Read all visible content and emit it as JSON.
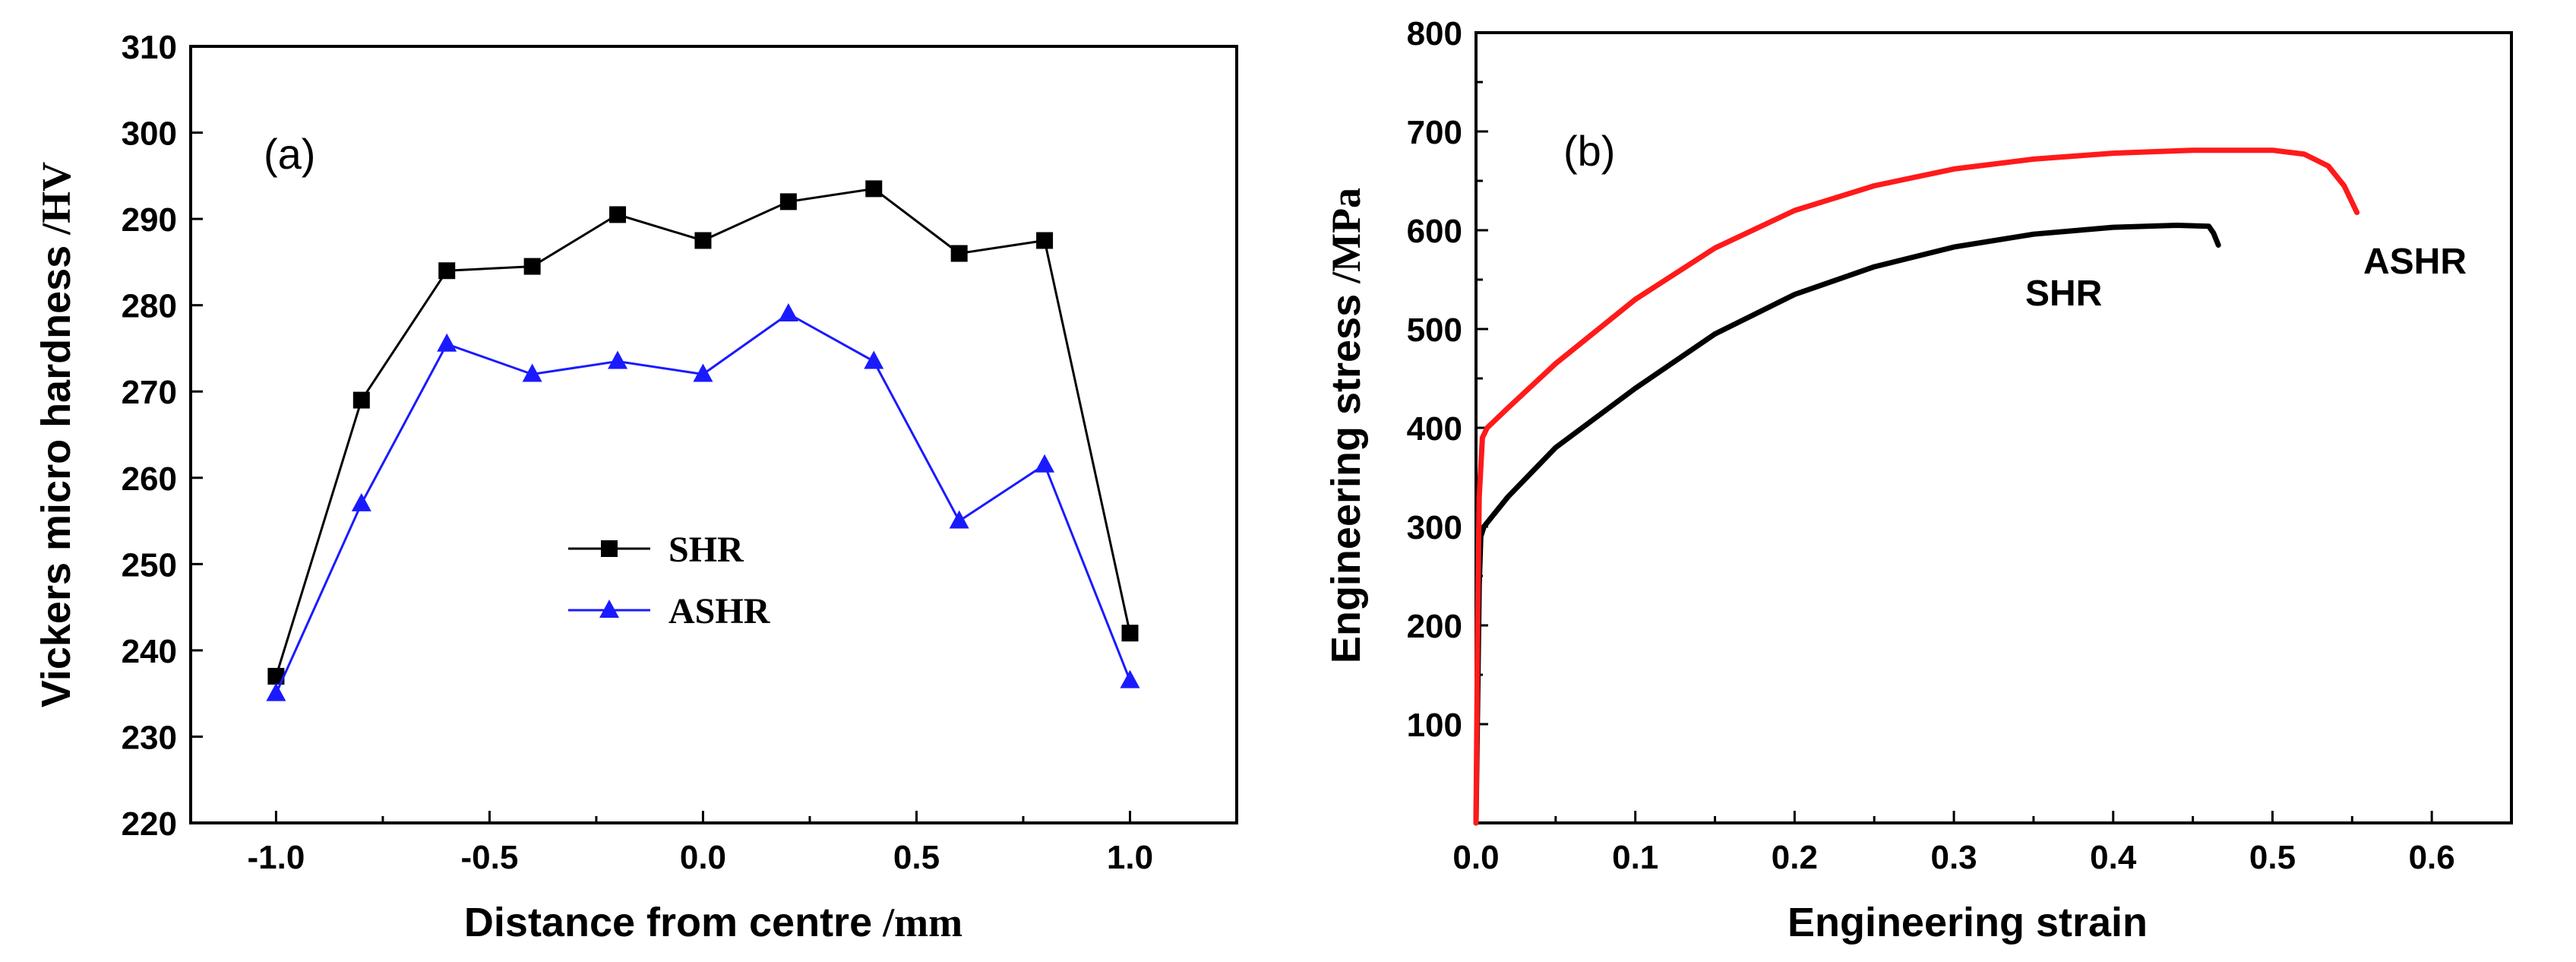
{
  "chart_data": [
    {
      "type": "line",
      "panel_label": "(a)",
      "xlabel": "Distance from centre",
      "xlabel_unit": "/mm",
      "ylabel": "Vickers micro hardness",
      "ylabel_unit": "/HV",
      "xlim": [
        -1.2,
        1.25
      ],
      "ylim": [
        220,
        310
      ],
      "xticks": [
        -1.0,
        -0.5,
        0.0,
        0.5,
        1.0
      ],
      "xtick_labels": [
        "-1.0",
        "-0.5",
        "0.0",
        "0.5",
        "1.0"
      ],
      "yticks": [
        220,
        230,
        240,
        250,
        260,
        270,
        280,
        290,
        300,
        310
      ],
      "ytick_labels": [
        "220",
        "230",
        "240",
        "250",
        "260",
        "270",
        "280",
        "290",
        "300",
        "310"
      ],
      "x": [
        -1.0,
        -0.8,
        -0.6,
        -0.4,
        -0.2,
        0.0,
        0.2,
        0.4,
        0.6,
        0.8,
        1.0
      ],
      "series": [
        {
          "name": "SHR",
          "color": "#000000",
          "marker": "square",
          "values": [
            237,
            269,
            284,
            284.5,
            290.5,
            287.5,
            292,
            293.5,
            286,
            287.5,
            242
          ]
        },
        {
          "name": "ASHR",
          "color": "#1a1aff",
          "marker": "triangle",
          "values": [
            235,
            257,
            275.5,
            272,
            273.5,
            272,
            279,
            273.5,
            255,
            261.5,
            236.5
          ]
        }
      ],
      "legend": [
        "SHR",
        "ASHR"
      ],
      "legend_position": "center"
    },
    {
      "type": "line",
      "panel_label": "(b)",
      "xlabel": "Engineering strain",
      "ylabel": "Engineering stress",
      "ylabel_unit": "/MPa",
      "xlim": [
        0.0,
        0.65
      ],
      "ylim": [
        0,
        800
      ],
      "xticks": [
        0.0,
        0.1,
        0.2,
        0.3,
        0.4,
        0.5,
        0.6
      ],
      "xtick_labels": [
        "0.0",
        "0.1",
        "0.2",
        "0.3",
        "0.4",
        "0.5",
        "0.6"
      ],
      "yticks": [
        100,
        200,
        300,
        400,
        500,
        600,
        700,
        800
      ],
      "ytick_labels": [
        "100",
        "200",
        "300",
        "400",
        "500",
        "600",
        "700",
        "800"
      ],
      "series": [
        {
          "name": "SHR",
          "color": "#000000",
          "x": [
            0.0,
            0.001,
            0.002,
            0.003,
            0.005,
            0.02,
            0.05,
            0.1,
            0.15,
            0.2,
            0.25,
            0.3,
            0.35,
            0.4,
            0.44,
            0.46,
            0.463,
            0.466
          ],
          "y": [
            0,
            120,
            240,
            290,
            300,
            330,
            380,
            440,
            495,
            535,
            563,
            583,
            596,
            603,
            605,
            604,
            597,
            585
          ]
        },
        {
          "name": "ASHR",
          "color": "#ff1a1a",
          "x": [
            0.0,
            0.001,
            0.002,
            0.004,
            0.007,
            0.02,
            0.05,
            0.1,
            0.15,
            0.2,
            0.25,
            0.3,
            0.35,
            0.4,
            0.45,
            0.5,
            0.52,
            0.535,
            0.545,
            0.553
          ],
          "y": [
            0,
            200,
            330,
            390,
            400,
            420,
            465,
            530,
            582,
            620,
            645,
            662,
            672,
            678,
            681,
            681,
            677,
            665,
            645,
            618
          ]
        }
      ],
      "annotations": [
        "SHR",
        "ASHR"
      ]
    }
  ]
}
